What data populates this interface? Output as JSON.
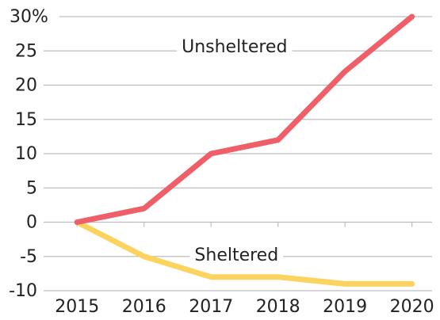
{
  "chart_data": {
    "type": "line",
    "x": [
      2015,
      2016,
      2017,
      2018,
      2019,
      2020
    ],
    "series": [
      {
        "name": "Unsheltered",
        "color": "#ef5f69",
        "values": [
          0,
          2,
          10,
          12,
          22,
          30
        ]
      },
      {
        "name": "Sheltered",
        "color": "#fbd35e",
        "values": [
          0,
          -5,
          -8,
          -8,
          -9,
          -9
        ]
      }
    ],
    "xlim": [
      2014.5,
      2020.3
    ],
    "xticks": [
      2015,
      2016,
      2017,
      2018,
      2019,
      2020
    ],
    "ylim": [
      -10,
      30
    ],
    "yticks": [
      -10,
      -5,
      0,
      5,
      10,
      15,
      20,
      25,
      {
        "value": 30,
        "label": "30%"
      }
    ],
    "grid": true,
    "annotations": [
      {
        "text": "Unsheltered",
        "x": 2017.35,
        "y": 25.5
      },
      {
        "text": "Sheltered",
        "x": 2017.38,
        "y": -4.9
      }
    ]
  }
}
